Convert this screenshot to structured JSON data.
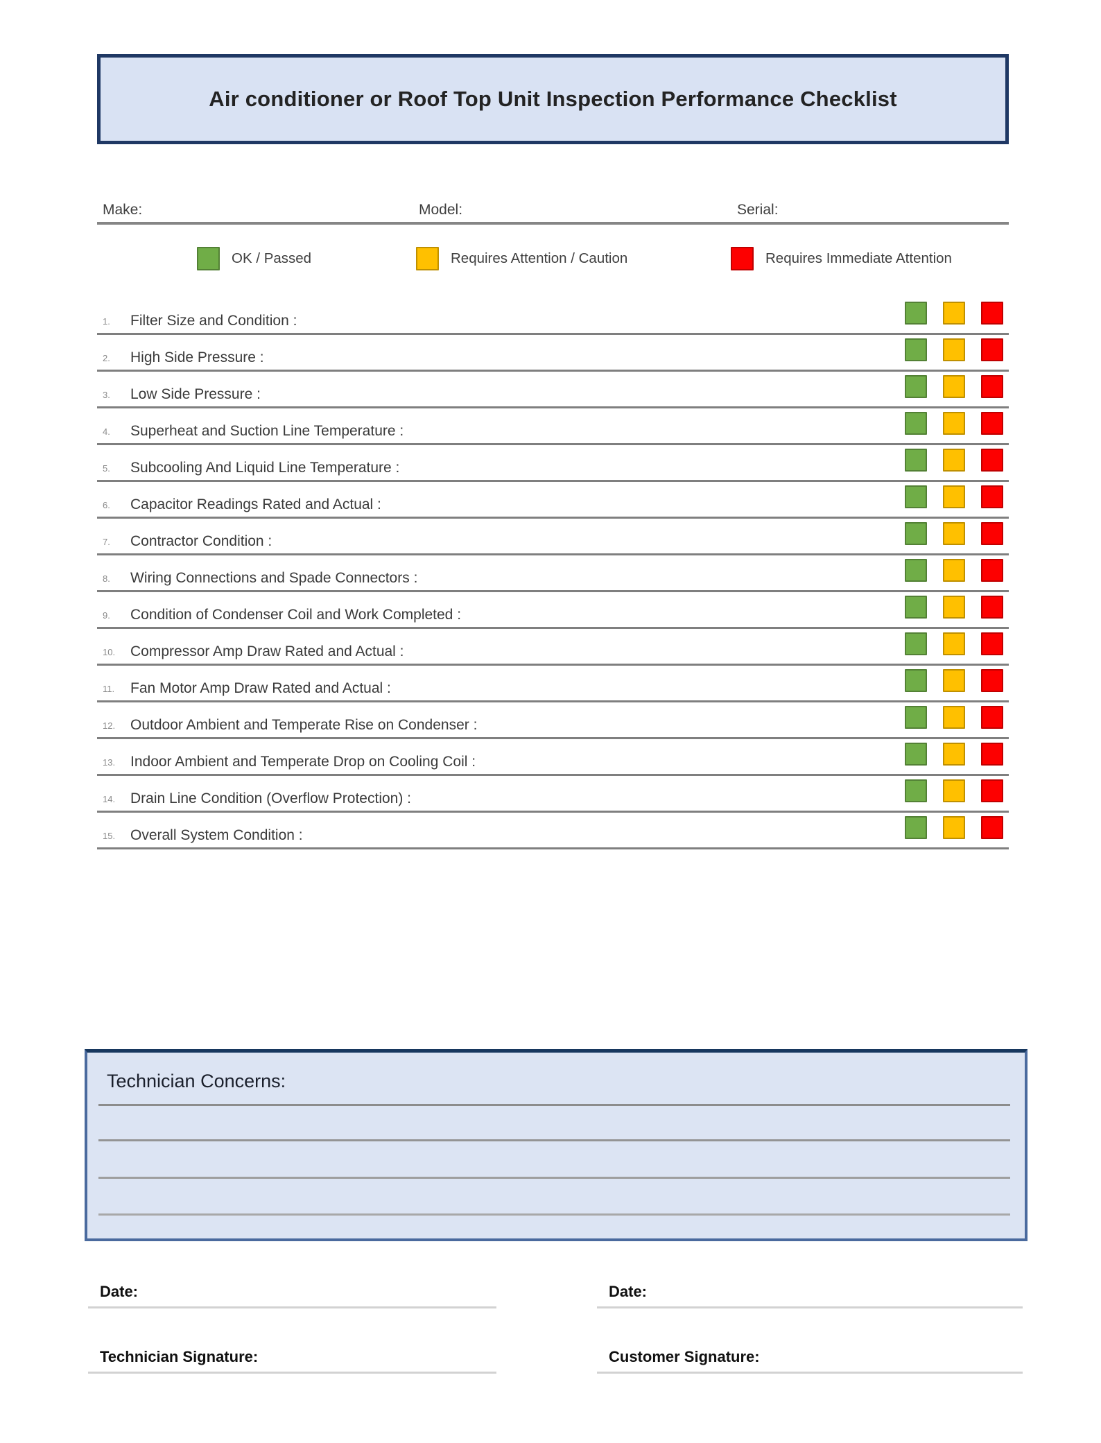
{
  "title": "Air conditioner or Roof Top Unit Inspection Performance Checklist",
  "fields": {
    "make_label": "Make:",
    "make_value": "",
    "model_label": "Model:",
    "model_value": "",
    "serial_label": "Serial:",
    "serial_value": ""
  },
  "legend": [
    {
      "key": "ok",
      "label": "OK / Passed",
      "color": "#70AD47",
      "border": "#538135"
    },
    {
      "key": "caution",
      "label": "Requires Attention / Caution",
      "color": "#FFC000",
      "border": "#BF9000"
    },
    {
      "key": "immediate",
      "label": "Requires Immediate Attention",
      "color": "#FD0000",
      "border": "#C00000"
    }
  ],
  "checklist": {
    "items": [
      {
        "number": "1.",
        "label": "Filter Size and Condition :"
      },
      {
        "number": "2.",
        "label": "High Side Pressure :"
      },
      {
        "number": "3.",
        "label": "Low Side Pressure :"
      },
      {
        "number": "4.",
        "label": "Superheat and Suction Line Temperature :"
      },
      {
        "number": "5.",
        "label": "Subcooling And Liquid Line Temperature :"
      },
      {
        "number": "6.",
        "label": "Capacitor Readings Rated and Actual :"
      },
      {
        "number": "7.",
        "label": "Contractor Condition :"
      },
      {
        "number": "8.",
        "label": "Wiring Connections and Spade Connectors :"
      },
      {
        "number": "9.",
        "label": "Condition of Condenser Coil and Work Completed :"
      },
      {
        "number": "10.",
        "label": "Compressor Amp Draw Rated and Actual :"
      },
      {
        "number": "11.",
        "label": "Fan Motor Amp Draw Rated and Actual :"
      },
      {
        "number": "12.",
        "label": "Outdoor Ambient and Temperate Rise on Condenser :"
      },
      {
        "number": "13.",
        "label": "Indoor Ambient and Temperate Drop on Cooling Coil :"
      },
      {
        "number": "14.",
        "label": "Drain Line Condition (Overflow Protection) :"
      },
      {
        "number": "15.",
        "label": "Overall System Condition :"
      }
    ]
  },
  "technician_concerns": {
    "heading": "Technician Concerns:",
    "lines": 4
  },
  "footer": {
    "left": {
      "date_label": "Date:",
      "signature_label": "Technician Signature:"
    },
    "right": {
      "date_label": "Date:",
      "signature_label": "Customer Signature:"
    }
  },
  "colors": {
    "banner_bg": "#D9E2F3",
    "banner_border": "#1F3864",
    "concerns_bg": "#DCE4F3",
    "concerns_border": "#4A6A9E",
    "separator": "#7F7F7F",
    "status_ok": "#70AD47",
    "status_caution": "#FFC000",
    "status_immediate": "#FD0000"
  }
}
